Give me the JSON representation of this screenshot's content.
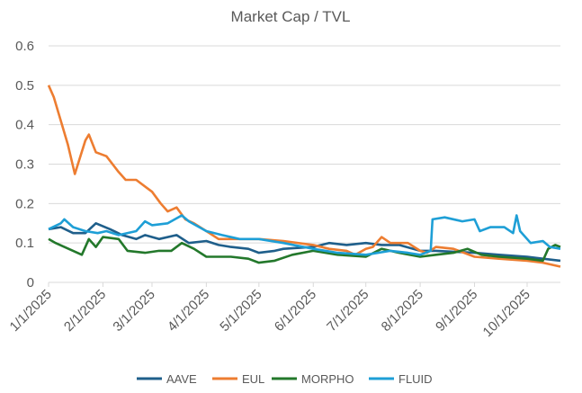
{
  "chart_data": {
    "type": "line",
    "title": "Market Cap / TVL",
    "xlabel": "",
    "ylabel": "",
    "ylim": [
      0,
      0.6
    ],
    "yticks": [
      "0",
      "0.1",
      "0.2",
      "0.3",
      "0.4",
      "0.5",
      "0.6"
    ],
    "xlim": [
      "2025-01-01",
      "2025-10-20"
    ],
    "xticks": [
      {
        "date": "2025-01-01",
        "label": "1/1/2025"
      },
      {
        "date": "2025-02-01",
        "label": "2/1/2025"
      },
      {
        "date": "2025-03-01",
        "label": "3/1/2025"
      },
      {
        "date": "2025-04-01",
        "label": "4/1/2025"
      },
      {
        "date": "2025-05-01",
        "label": "5/1/2025"
      },
      {
        "date": "2025-06-01",
        "label": "6/1/2025"
      },
      {
        "date": "2025-07-01",
        "label": "7/1/2025"
      },
      {
        "date": "2025-08-01",
        "label": "8/1/2025"
      },
      {
        "date": "2025-09-01",
        "label": "9/1/2025"
      },
      {
        "date": "2025-10-01",
        "label": "10/1/2025"
      }
    ],
    "grid": true,
    "legend_position": "bottom",
    "series": [
      {
        "name": "AAVE",
        "color": "#1F5F8B",
        "points": [
          [
            "2025-01-01",
            0.135
          ],
          [
            "2025-01-08",
            0.14
          ],
          [
            "2025-01-15",
            0.125
          ],
          [
            "2025-01-22",
            0.125
          ],
          [
            "2025-01-28",
            0.15
          ],
          [
            "2025-02-05",
            0.135
          ],
          [
            "2025-02-12",
            0.12
          ],
          [
            "2025-02-20",
            0.11
          ],
          [
            "2025-02-25",
            0.12
          ],
          [
            "2025-03-05",
            0.11
          ],
          [
            "2025-03-15",
            0.12
          ],
          [
            "2025-03-22",
            0.1
          ],
          [
            "2025-04-01",
            0.105
          ],
          [
            "2025-04-08",
            0.095
          ],
          [
            "2025-04-15",
            0.09
          ],
          [
            "2025-04-25",
            0.085
          ],
          [
            "2025-05-01",
            0.075
          ],
          [
            "2025-05-10",
            0.08
          ],
          [
            "2025-05-15",
            0.085
          ],
          [
            "2025-06-01",
            0.09
          ],
          [
            "2025-06-10",
            0.1
          ],
          [
            "2025-06-20",
            0.095
          ],
          [
            "2025-07-01",
            0.1
          ],
          [
            "2025-07-10",
            0.095
          ],
          [
            "2025-07-20",
            0.095
          ],
          [
            "2025-08-01",
            0.08
          ],
          [
            "2025-08-10",
            0.08
          ],
          [
            "2025-09-01",
            0.075
          ],
          [
            "2025-09-15",
            0.07
          ],
          [
            "2025-10-01",
            0.065
          ],
          [
            "2025-10-10",
            0.06
          ],
          [
            "2025-10-20",
            0.055
          ]
        ]
      },
      {
        "name": "EUL",
        "color": "#ED7D31",
        "points": [
          [
            "2025-01-01",
            0.5
          ],
          [
            "2025-01-04",
            0.47
          ],
          [
            "2025-01-08",
            0.41
          ],
          [
            "2025-01-12",
            0.35
          ],
          [
            "2025-01-16",
            0.275
          ],
          [
            "2025-01-22",
            0.36
          ],
          [
            "2025-01-24",
            0.375
          ],
          [
            "2025-01-28",
            0.33
          ],
          [
            "2025-02-03",
            0.32
          ],
          [
            "2025-02-10",
            0.28
          ],
          [
            "2025-02-14",
            0.26
          ],
          [
            "2025-02-20",
            0.26
          ],
          [
            "2025-02-26",
            0.24
          ],
          [
            "2025-03-01",
            0.23
          ],
          [
            "2025-03-06",
            0.2
          ],
          [
            "2025-03-10",
            0.18
          ],
          [
            "2025-03-15",
            0.19
          ],
          [
            "2025-03-20",
            0.16
          ],
          [
            "2025-03-25",
            0.15
          ],
          [
            "2025-04-01",
            0.13
          ],
          [
            "2025-04-08",
            0.11
          ],
          [
            "2025-04-15",
            0.11
          ],
          [
            "2025-04-22",
            0.11
          ],
          [
            "2025-05-01",
            0.11
          ],
          [
            "2025-05-15",
            0.105
          ],
          [
            "2025-06-01",
            0.095
          ],
          [
            "2025-06-10",
            0.085
          ],
          [
            "2025-06-20",
            0.08
          ],
          [
            "2025-06-25",
            0.07
          ],
          [
            "2025-07-01",
            0.085
          ],
          [
            "2025-07-05",
            0.09
          ],
          [
            "2025-07-10",
            0.115
          ],
          [
            "2025-07-15",
            0.1
          ],
          [
            "2025-07-25",
            0.1
          ],
          [
            "2025-08-01",
            0.08
          ],
          [
            "2025-08-05",
            0.075
          ],
          [
            "2025-08-10",
            0.09
          ],
          [
            "2025-08-20",
            0.085
          ],
          [
            "2025-09-01",
            0.065
          ],
          [
            "2025-09-15",
            0.06
          ],
          [
            "2025-10-01",
            0.055
          ],
          [
            "2025-10-10",
            0.05
          ],
          [
            "2025-10-20",
            0.04
          ]
        ]
      },
      {
        "name": "MORPHO",
        "color": "#23782B",
        "points": [
          [
            "2025-01-01",
            0.11
          ],
          [
            "2025-01-05",
            0.1
          ],
          [
            "2025-01-10",
            0.09
          ],
          [
            "2025-01-20",
            0.07
          ],
          [
            "2025-01-24",
            0.11
          ],
          [
            "2025-01-28",
            0.09
          ],
          [
            "2025-02-01",
            0.115
          ],
          [
            "2025-02-10",
            0.11
          ],
          [
            "2025-02-15",
            0.08
          ],
          [
            "2025-02-25",
            0.075
          ],
          [
            "2025-03-05",
            0.08
          ],
          [
            "2025-03-12",
            0.08
          ],
          [
            "2025-03-18",
            0.1
          ],
          [
            "2025-03-25",
            0.085
          ],
          [
            "2025-04-01",
            0.065
          ],
          [
            "2025-04-15",
            0.065
          ],
          [
            "2025-04-25",
            0.06
          ],
          [
            "2025-05-01",
            0.05
          ],
          [
            "2025-05-10",
            0.055
          ],
          [
            "2025-05-20",
            0.07
          ],
          [
            "2025-06-01",
            0.08
          ],
          [
            "2025-06-15",
            0.07
          ],
          [
            "2025-07-01",
            0.065
          ],
          [
            "2025-07-10",
            0.085
          ],
          [
            "2025-07-20",
            0.075
          ],
          [
            "2025-08-01",
            0.065
          ],
          [
            "2025-08-10",
            0.07
          ],
          [
            "2025-08-20",
            0.075
          ],
          [
            "2025-08-28",
            0.085
          ],
          [
            "2025-09-05",
            0.07
          ],
          [
            "2025-09-15",
            0.065
          ],
          [
            "2025-10-01",
            0.06
          ],
          [
            "2025-10-10",
            0.055
          ],
          [
            "2025-10-13",
            0.085
          ],
          [
            "2025-10-17",
            0.095
          ],
          [
            "2025-10-20",
            0.09
          ]
        ]
      },
      {
        "name": "FLUID",
        "color": "#1E9FD6",
        "points": [
          [
            "2025-01-01",
            0.135
          ],
          [
            "2025-01-08",
            0.15
          ],
          [
            "2025-01-10",
            0.16
          ],
          [
            "2025-01-15",
            0.14
          ],
          [
            "2025-01-22",
            0.13
          ],
          [
            "2025-01-29",
            0.125
          ],
          [
            "2025-02-03",
            0.13
          ],
          [
            "2025-02-10",
            0.12
          ],
          [
            "2025-02-20",
            0.13
          ],
          [
            "2025-02-25",
            0.155
          ],
          [
            "2025-03-01",
            0.145
          ],
          [
            "2025-03-10",
            0.15
          ],
          [
            "2025-03-18",
            0.17
          ],
          [
            "2025-03-22",
            0.155
          ],
          [
            "2025-04-01",
            0.13
          ],
          [
            "2025-04-10",
            0.12
          ],
          [
            "2025-04-20",
            0.11
          ],
          [
            "2025-05-01",
            0.11
          ],
          [
            "2025-05-15",
            0.1
          ],
          [
            "2025-06-01",
            0.085
          ],
          [
            "2025-06-15",
            0.075
          ],
          [
            "2025-07-01",
            0.07
          ],
          [
            "2025-07-15",
            0.08
          ],
          [
            "2025-07-25",
            0.075
          ],
          [
            "2025-08-01",
            0.07
          ],
          [
            "2025-08-07",
            0.08
          ],
          [
            "2025-08-08",
            0.16
          ],
          [
            "2025-08-15",
            0.165
          ],
          [
            "2025-08-25",
            0.155
          ],
          [
            "2025-09-01",
            0.16
          ],
          [
            "2025-09-04",
            0.13
          ],
          [
            "2025-09-10",
            0.14
          ],
          [
            "2025-09-18",
            0.14
          ],
          [
            "2025-09-23",
            0.125
          ],
          [
            "2025-09-25",
            0.17
          ],
          [
            "2025-09-27",
            0.13
          ],
          [
            "2025-10-03",
            0.1
          ],
          [
            "2025-10-10",
            0.105
          ],
          [
            "2025-10-14",
            0.09
          ],
          [
            "2025-10-20",
            0.085
          ]
        ]
      }
    ]
  }
}
